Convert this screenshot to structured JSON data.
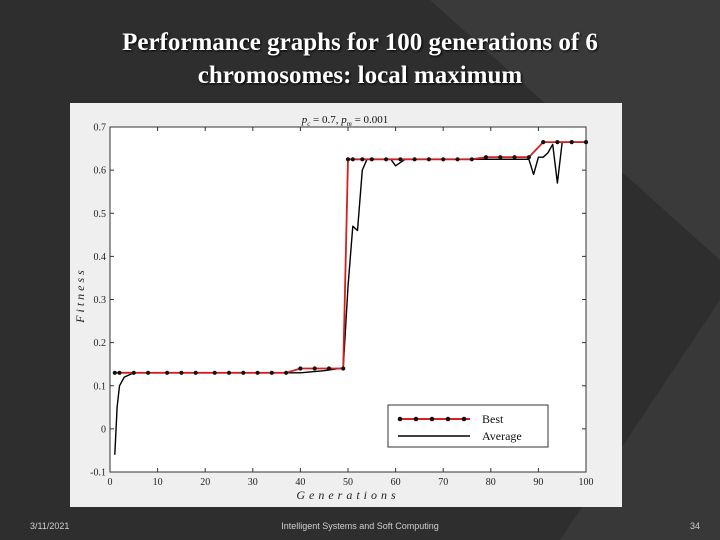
{
  "slide": {
    "title_line1": "Performance graphs for 100 generations of 6",
    "title_line2": "chromosomes: local maximum",
    "footer_date": "3/11/2021",
    "footer_center": "Intelligent Systems and Soft Computing",
    "page_number": "34"
  },
  "chart_data": {
    "type": "line",
    "title_parts": {
      "pc": "p",
      "pc_sub": "c",
      "pc_val": " = 0.7,  ",
      "pm": "p",
      "pm_sub": "m",
      "pm_val": " = 0.001"
    },
    "xlabel": "Generations",
    "ylabel": "Fitness",
    "xlim": [
      0,
      100
    ],
    "ylim": [
      -0.1,
      0.7
    ],
    "xticks": [
      "0",
      "10",
      "20",
      "30",
      "40",
      "50",
      "60",
      "70",
      "80",
      "90",
      "100"
    ],
    "yticks": [
      "-0.1",
      "0",
      "0.1",
      "0.2",
      "0.3",
      "0.4",
      "0.5",
      "0.6",
      "0.7"
    ],
    "legend_position": "lower-right",
    "series": [
      {
        "name": "Best",
        "color": "#d42020",
        "marker_color": "#111111",
        "x": [
          1,
          2,
          5,
          8,
          12,
          15,
          18,
          22,
          25,
          28,
          31,
          34,
          37,
          40,
          43,
          46,
          49,
          50,
          51,
          53,
          55,
          58,
          61,
          64,
          67,
          70,
          73,
          76,
          79,
          82,
          85,
          88,
          91,
          94,
          97,
          100
        ],
        "y": [
          0.13,
          0.13,
          0.13,
          0.13,
          0.13,
          0.13,
          0.13,
          0.13,
          0.13,
          0.13,
          0.13,
          0.13,
          0.13,
          0.14,
          0.14,
          0.14,
          0.14,
          0.625,
          0.625,
          0.625,
          0.625,
          0.625,
          0.625,
          0.625,
          0.625,
          0.625,
          0.625,
          0.625,
          0.63,
          0.63,
          0.63,
          0.63,
          0.665,
          0.665,
          0.665,
          0.665
        ]
      },
      {
        "name": "Average",
        "color": "#000000",
        "x": [
          1,
          1.5,
          2,
          3,
          5,
          8,
          15,
          25,
          35,
          40,
          45,
          48,
          49,
          50,
          51,
          52,
          53,
          54,
          56,
          58,
          59,
          60,
          62,
          65,
          70,
          75,
          80,
          85,
          88,
          89,
          90,
          91,
          92,
          93,
          94,
          95,
          96,
          97,
          100
        ],
        "y": [
          -0.06,
          0.05,
          0.1,
          0.12,
          0.13,
          0.13,
          0.13,
          0.13,
          0.13,
          0.13,
          0.135,
          0.14,
          0.14,
          0.33,
          0.47,
          0.46,
          0.6,
          0.625,
          0.625,
          0.625,
          0.625,
          0.61,
          0.625,
          0.625,
          0.625,
          0.625,
          0.625,
          0.625,
          0.625,
          0.59,
          0.63,
          0.63,
          0.64,
          0.66,
          0.57,
          0.665,
          0.665,
          0.665,
          0.665
        ]
      }
    ]
  }
}
